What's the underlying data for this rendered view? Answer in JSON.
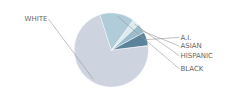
{
  "chart_data": {
    "type": "pie",
    "categories": [
      "WHITE",
      "A.I.",
      "ASIAN",
      "HISPANIC",
      "BLACK"
    ],
    "values": [
      72,
      6,
      4,
      3,
      15
    ],
    "colors": [
      "#cdd4e0",
      "#5b849b",
      "#9bbccc",
      "#dce9ef",
      "#b0ccd9"
    ]
  }
}
